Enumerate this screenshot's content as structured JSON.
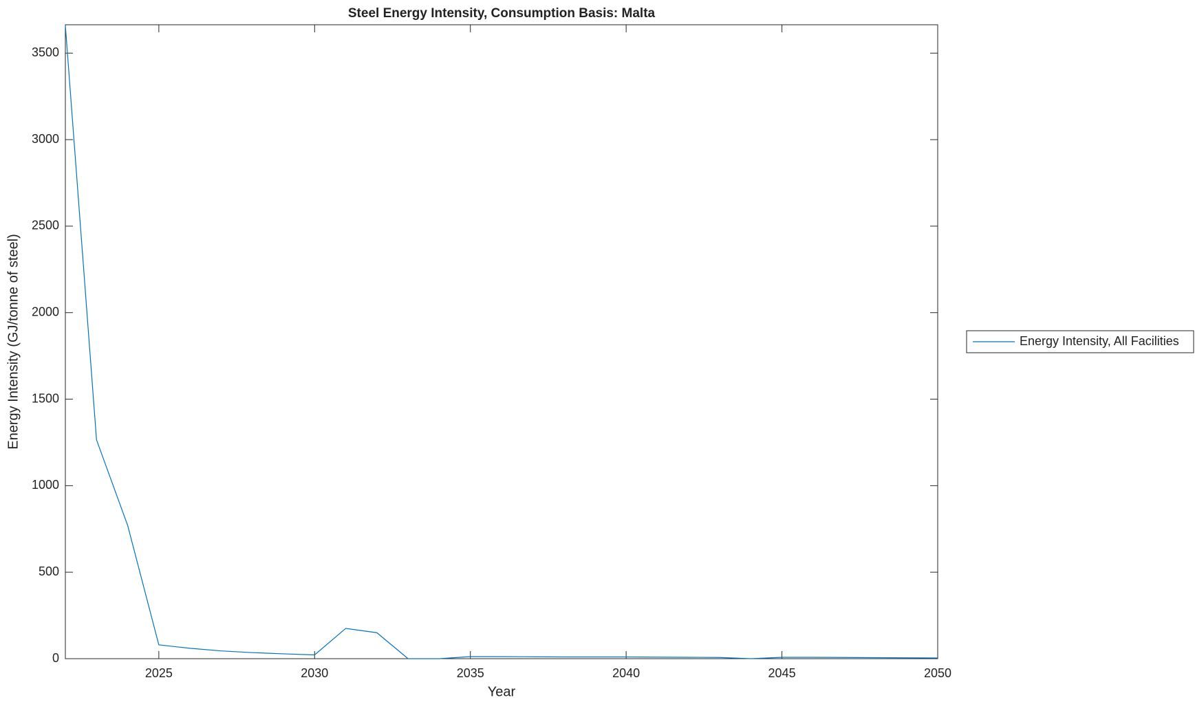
{
  "chart_data": {
    "type": "line",
    "title": "Steel Energy Intensity, Consumption Basis: Malta",
    "x_label": "Year",
    "y_label": "Energy Intensity (GJ/tonne of steel)",
    "x": [
      2022,
      2023,
      2024,
      2025,
      2026,
      2027,
      2028,
      2029,
      2030,
      2031,
      2032,
      2033,
      2034,
      2035,
      2036,
      2037,
      2038,
      2039,
      2040,
      2041,
      2042,
      2043,
      2044,
      2045,
      2046,
      2047,
      2048,
      2049,
      2050
    ],
    "series": [
      {
        "name": "Energy Intensity, All Facilities",
        "color": "#0072bd",
        "values": [
          3660,
          1265,
          770,
          80,
          60,
          45,
          35,
          28,
          22,
          175,
          150,
          0,
          0,
          12,
          12,
          11,
          10,
          10,
          10,
          9,
          8,
          7,
          0,
          8,
          8,
          7,
          6,
          5,
          4
        ]
      }
    ],
    "xlim": [
      2022,
      2050
    ],
    "xticks": [
      2025,
      2030,
      2035,
      2040,
      2045,
      2050
    ],
    "ylim": [
      0,
      3664
    ],
    "yticks": [
      0,
      500,
      1000,
      1500,
      2000,
      2500,
      3000,
      3500
    ],
    "grid": false,
    "legend": "right"
  }
}
